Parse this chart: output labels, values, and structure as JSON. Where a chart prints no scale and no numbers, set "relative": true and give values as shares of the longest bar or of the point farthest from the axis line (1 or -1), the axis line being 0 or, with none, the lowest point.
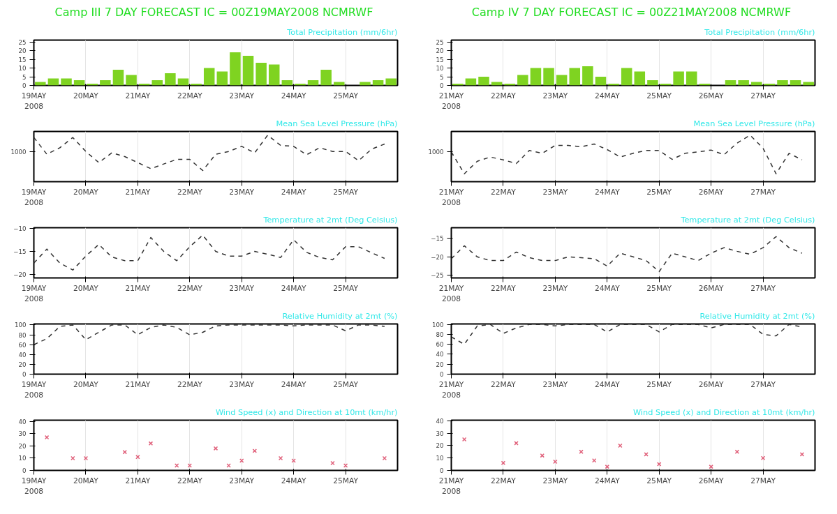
{
  "chart_data": [
    {
      "type": "bar",
      "title": "Camp III 7 DAY FORECAST  IC = 00Z19MAY2008 NCMRWF",
      "subtitle": "Total Precipitation (mm/6hr)",
      "color": "#7fd321",
      "grid": "x",
      "x": [
        "2008-05-19T03:00",
        "2008-05-19T09:00",
        "2008-05-19T15:00",
        "2008-05-19T21:00",
        "2008-05-20T03:00",
        "2008-05-20T09:00",
        "2008-05-20T15:00",
        "2008-05-20T21:00",
        "2008-05-21T03:00",
        "2008-05-21T09:00",
        "2008-05-21T15:00",
        "2008-05-21T21:00",
        "2008-05-22T03:00",
        "2008-05-22T09:00",
        "2008-05-22T15:00",
        "2008-05-22T21:00",
        "2008-05-23T03:00",
        "2008-05-23T09:00",
        "2008-05-23T15:00",
        "2008-05-23T21:00",
        "2008-05-24T03:00",
        "2008-05-24T09:00",
        "2008-05-24T15:00",
        "2008-05-24T21:00",
        "2008-05-25T03:00",
        "2008-05-25T09:00",
        "2008-05-25T15:00",
        "2008-05-25T21:00"
      ],
      "values": [
        2,
        4,
        4,
        3,
        1,
        3,
        9,
        6,
        1,
        3,
        7,
        4,
        1,
        10,
        8,
        19,
        17,
        13,
        12,
        3,
        1,
        3,
        9,
        2,
        0,
        2,
        3,
        4
      ],
      "xlim": [
        "2008-05-19T00:00",
        "2008-05-26T00:00"
      ],
      "ylim": [
        0,
        26
      ],
      "yticks": [
        0,
        5,
        10,
        15,
        20,
        25
      ],
      "xticks": [
        {
          "value": "2008-05-19",
          "label": "19MAY\n2008"
        },
        {
          "value": "2008-05-20",
          "label": "20MAY"
        },
        {
          "value": "2008-05-21",
          "label": "21MAY"
        },
        {
          "value": "2008-05-22",
          "label": "22MAY"
        },
        {
          "value": "2008-05-23",
          "label": "23MAY"
        },
        {
          "value": "2008-05-24",
          "label": "24MAY"
        },
        {
          "value": "2008-05-25",
          "label": "25MAY"
        }
      ]
    },
    {
      "type": "bar",
      "title": "Camp IV 7 DAY FORECAST  IC = 00Z21MAY2008 NCMRWF",
      "subtitle": "Total Precipitation (mm/6hr)",
      "color": "#7fd321",
      "grid": "x",
      "x": [
        "2008-05-21T03:00",
        "2008-05-21T09:00",
        "2008-05-21T15:00",
        "2008-05-21T21:00",
        "2008-05-22T03:00",
        "2008-05-22T09:00",
        "2008-05-22T15:00",
        "2008-05-22T21:00",
        "2008-05-23T03:00",
        "2008-05-23T09:00",
        "2008-05-23T15:00",
        "2008-05-23T21:00",
        "2008-05-24T03:00",
        "2008-05-24T09:00",
        "2008-05-24T15:00",
        "2008-05-24T21:00",
        "2008-05-25T03:00",
        "2008-05-25T09:00",
        "2008-05-25T15:00",
        "2008-05-25T21:00",
        "2008-05-26T03:00",
        "2008-05-26T09:00",
        "2008-05-26T15:00",
        "2008-05-26T21:00",
        "2008-05-27T03:00",
        "2008-05-27T09:00",
        "2008-05-27T15:00",
        "2008-05-27T21:00"
      ],
      "values": [
        1,
        4,
        5,
        2,
        1,
        6,
        10,
        10,
        6,
        10,
        11,
        5,
        1,
        10,
        8,
        3,
        1,
        8,
        8,
        1,
        0,
        3,
        3,
        2,
        1,
        3,
        3,
        2
      ],
      "xlim": [
        "2008-05-21T00:00",
        "2008-05-28T00:00"
      ],
      "ylim": [
        0,
        26
      ],
      "yticks": [
        0,
        5,
        10,
        15,
        20,
        25
      ],
      "xticks": [
        {
          "value": "2008-05-21",
          "label": "21MAY\n2008"
        },
        {
          "value": "2008-05-22",
          "label": "22MAY"
        },
        {
          "value": "2008-05-23",
          "label": "23MAY"
        },
        {
          "value": "2008-05-24",
          "label": "24MAY"
        },
        {
          "value": "2008-05-25",
          "label": "25MAY"
        },
        {
          "value": "2008-05-26",
          "label": "26MAY"
        },
        {
          "value": "2008-05-27",
          "label": "27MAY"
        }
      ]
    },
    {
      "type": "line",
      "title": "Mean Sea Level Pressure (hPa)",
      "relative": true,
      "color": "#333333",
      "line_style": "dashed",
      "grid": "x",
      "x": [
        "2008-05-19T00:00",
        "2008-05-19T06:00",
        "2008-05-19T12:00",
        "2008-05-19T18:00",
        "2008-05-20T00:00",
        "2008-05-20T06:00",
        "2008-05-20T12:00",
        "2008-05-20T18:00",
        "2008-05-21T00:00",
        "2008-05-21T06:00",
        "2008-05-21T12:00",
        "2008-05-21T18:00",
        "2008-05-22T00:00",
        "2008-05-22T06:00",
        "2008-05-22T12:00",
        "2008-05-22T18:00",
        "2008-05-23T00:00",
        "2008-05-23T06:00",
        "2008-05-23T12:00",
        "2008-05-23T18:00",
        "2008-05-24T00:00",
        "2008-05-24T06:00",
        "2008-05-24T12:00",
        "2008-05-24T18:00",
        "2008-05-25T00:00",
        "2008-05-25T06:00",
        "2008-05-25T12:00",
        "2008-05-25T18:00"
      ],
      "values": [
        0.95,
        0.59,
        0.73,
        0.95,
        0.65,
        0.41,
        0.62,
        0.54,
        0.41,
        0.28,
        0.38,
        0.48,
        0.48,
        0.24,
        0.59,
        0.65,
        0.76,
        0.62,
        1.0,
        0.78,
        0.76,
        0.58,
        0.73,
        0.65,
        0.65,
        0.45,
        0.7,
        0.81
      ],
      "annotations": [
        "1000"
      ],
      "xlim": [
        "2008-05-19T00:00",
        "2008-05-26T00:00"
      ],
      "xticks": [
        {
          "value": "2008-05-19",
          "label": "19MAY\n2008"
        },
        {
          "value": "2008-05-20",
          "label": "20MAY"
        },
        {
          "value": "2008-05-21",
          "label": "21MAY"
        },
        {
          "value": "2008-05-22",
          "label": "22MAY"
        },
        {
          "value": "2008-05-23",
          "label": "23MAY"
        },
        {
          "value": "2008-05-24",
          "label": "24MAY"
        },
        {
          "value": "2008-05-25",
          "label": "25MAY"
        }
      ]
    },
    {
      "type": "line",
      "title": "Mean Sea Level Pressure (hPa)",
      "relative": true,
      "color": "#333333",
      "line_style": "dashed",
      "grid": "x",
      "x": [
        "2008-05-21T00:00",
        "2008-05-21T06:00",
        "2008-05-21T12:00",
        "2008-05-21T18:00",
        "2008-05-22T00:00",
        "2008-05-22T06:00",
        "2008-05-22T12:00",
        "2008-05-22T18:00",
        "2008-05-23T00:00",
        "2008-05-23T06:00",
        "2008-05-23T12:00",
        "2008-05-23T18:00",
        "2008-05-24T00:00",
        "2008-05-24T06:00",
        "2008-05-24T12:00",
        "2008-05-24T18:00",
        "2008-05-25T00:00",
        "2008-05-25T06:00",
        "2008-05-25T12:00",
        "2008-05-25T18:00",
        "2008-05-26T00:00",
        "2008-05-26T06:00",
        "2008-05-26T12:00",
        "2008-05-26T18:00",
        "2008-05-27T00:00",
        "2008-05-27T06:00",
        "2008-05-27T12:00",
        "2008-05-27T18:00"
      ],
      "values": [
        0.64,
        0.17,
        0.44,
        0.53,
        0.47,
        0.39,
        0.67,
        0.61,
        0.78,
        0.78,
        0.75,
        0.81,
        0.69,
        0.53,
        0.61,
        0.67,
        0.67,
        0.48,
        0.61,
        0.64,
        0.68,
        0.58,
        0.83,
        1.0,
        0.72,
        0.17,
        0.61,
        0.47
      ],
      "annotations": [
        "1000"
      ],
      "xlim": [
        "2008-05-21T00:00",
        "2008-05-28T00:00"
      ],
      "xticks": [
        {
          "value": "2008-05-21",
          "label": "21MAY\n2008"
        },
        {
          "value": "2008-05-22",
          "label": "22MAY"
        },
        {
          "value": "2008-05-23",
          "label": "23MAY"
        },
        {
          "value": "2008-05-24",
          "label": "24MAY"
        },
        {
          "value": "2008-05-25",
          "label": "25MAY"
        },
        {
          "value": "2008-05-26",
          "label": "26MAY"
        },
        {
          "value": "2008-05-27",
          "label": "27MAY"
        }
      ]
    },
    {
      "type": "line",
      "title": "Temperature at 2mt (Deg Celsius)",
      "color": "#333333",
      "line_style": "dashed",
      "grid": "x",
      "x": [
        "2008-05-19T00:00",
        "2008-05-19T06:00",
        "2008-05-19T12:00",
        "2008-05-19T18:00",
        "2008-05-20T00:00",
        "2008-05-20T06:00",
        "2008-05-20T12:00",
        "2008-05-20T18:00",
        "2008-05-21T00:00",
        "2008-05-21T06:00",
        "2008-05-21T12:00",
        "2008-05-21T18:00",
        "2008-05-22T00:00",
        "2008-05-22T06:00",
        "2008-05-22T12:00",
        "2008-05-22T18:00",
        "2008-05-23T00:00",
        "2008-05-23T06:00",
        "2008-05-23T12:00",
        "2008-05-23T18:00",
        "2008-05-24T00:00",
        "2008-05-24T06:00",
        "2008-05-24T12:00",
        "2008-05-24T18:00",
        "2008-05-25T00:00",
        "2008-05-25T06:00",
        "2008-05-25T12:00",
        "2008-05-25T18:00"
      ],
      "values": [
        -17.5,
        -14.5,
        -17.5,
        -19,
        -16,
        -13.5,
        -16.2,
        -17,
        -17,
        -12,
        -15,
        -17,
        -14,
        -11.5,
        -15,
        -16,
        -16,
        -15,
        -15.6,
        -16.3,
        -12.5,
        -15.2,
        -16.3,
        -16.8,
        -14,
        -14,
        -15.3,
        -16.5
      ],
      "xlim": [
        "2008-05-19T00:00",
        "2008-05-26T00:00"
      ],
      "ylim": [
        -20.7,
        -9.9
      ],
      "yticks": [
        -20,
        -15,
        -10
      ],
      "xticks": [
        {
          "value": "2008-05-19",
          "label": "19MAY\n2008"
        },
        {
          "value": "2008-05-20",
          "label": "20MAY"
        },
        {
          "value": "2008-05-21",
          "label": "21MAY"
        },
        {
          "value": "2008-05-22",
          "label": "22MAY"
        },
        {
          "value": "2008-05-23",
          "label": "23MAY"
        },
        {
          "value": "2008-05-24",
          "label": "24MAY"
        },
        {
          "value": "2008-05-25",
          "label": "25MAY"
        }
      ]
    },
    {
      "type": "line",
      "title": "Temperature at 2mt (Deg Celsius)",
      "color": "#333333",
      "line_style": "dashed",
      "grid": "x",
      "x": [
        "2008-05-21T00:00",
        "2008-05-21T06:00",
        "2008-05-21T12:00",
        "2008-05-21T18:00",
        "2008-05-22T00:00",
        "2008-05-22T06:00",
        "2008-05-22T12:00",
        "2008-05-22T18:00",
        "2008-05-23T00:00",
        "2008-05-23T06:00",
        "2008-05-23T12:00",
        "2008-05-23T18:00",
        "2008-05-24T00:00",
        "2008-05-24T06:00",
        "2008-05-24T12:00",
        "2008-05-24T18:00",
        "2008-05-25T00:00",
        "2008-05-25T06:00",
        "2008-05-25T12:00",
        "2008-05-25T18:00",
        "2008-05-26T00:00",
        "2008-05-26T06:00",
        "2008-05-26T12:00",
        "2008-05-26T18:00",
        "2008-05-27T00:00",
        "2008-05-27T06:00",
        "2008-05-27T12:00",
        "2008-05-27T18:00"
      ],
      "values": [
        -20.5,
        -17,
        -20,
        -21,
        -21,
        -18.7,
        -20.2,
        -21,
        -21,
        -20,
        -20.2,
        -20.5,
        -22.5,
        -19,
        -20,
        -21,
        -24,
        -19,
        -20,
        -21,
        -19,
        -17.5,
        -18.5,
        -19.3,
        -17.5,
        -14.5,
        -17.5,
        -19
      ],
      "xlim": [
        "2008-05-21T00:00",
        "2008-05-28T00:00"
      ],
      "ylim": [
        -25.7,
        -12.1
      ],
      "yticks": [
        -25,
        -20,
        -15
      ],
      "xticks": [
        {
          "value": "2008-05-21",
          "label": "21MAY\n2008"
        },
        {
          "value": "2008-05-22",
          "label": "22MAY"
        },
        {
          "value": "2008-05-23",
          "label": "23MAY"
        },
        {
          "value": "2008-05-24",
          "label": "24MAY"
        },
        {
          "value": "2008-05-25",
          "label": "25MAY"
        },
        {
          "value": "2008-05-26",
          "label": "26MAY"
        },
        {
          "value": "2008-05-27",
          "label": "27MAY"
        }
      ]
    },
    {
      "type": "line",
      "title": "Relative Humidity at 2mt (%)",
      "color": "#333333",
      "line_style": "dashed",
      "grid": "x",
      "x": [
        "2008-05-19T00:00",
        "2008-05-19T06:00",
        "2008-05-19T12:00",
        "2008-05-19T18:00",
        "2008-05-20T00:00",
        "2008-05-20T06:00",
        "2008-05-20T12:00",
        "2008-05-20T18:00",
        "2008-05-21T00:00",
        "2008-05-21T06:00",
        "2008-05-21T12:00",
        "2008-05-21T18:00",
        "2008-05-22T00:00",
        "2008-05-22T06:00",
        "2008-05-22T12:00",
        "2008-05-22T18:00",
        "2008-05-23T00:00",
        "2008-05-23T06:00",
        "2008-05-23T12:00",
        "2008-05-23T18:00",
        "2008-05-24T00:00",
        "2008-05-24T06:00",
        "2008-05-24T12:00",
        "2008-05-24T18:00",
        "2008-05-25T00:00",
        "2008-05-25T06:00",
        "2008-05-25T12:00",
        "2008-05-25T18:00"
      ],
      "values": [
        60,
        72,
        97,
        100,
        70,
        85,
        100,
        100,
        80,
        95,
        100,
        95,
        80,
        85,
        98,
        100,
        100,
        100,
        100,
        100,
        98,
        100,
        100,
        100,
        88,
        100,
        100,
        97
      ],
      "xlim": [
        "2008-05-19T00:00",
        "2008-05-26T00:00"
      ],
      "ylim": [
        0,
        102
      ],
      "yticks": [
        0,
        20,
        40,
        60,
        80,
        100
      ],
      "xticks": [
        {
          "value": "2008-05-19",
          "label": "19MAY\n2008"
        },
        {
          "value": "2008-05-20",
          "label": "20MAY"
        },
        {
          "value": "2008-05-21",
          "label": "21MAY"
        },
        {
          "value": "2008-05-22",
          "label": "22MAY"
        },
        {
          "value": "2008-05-23",
          "label": "23MAY"
        },
        {
          "value": "2008-05-24",
          "label": "24MAY"
        },
        {
          "value": "2008-05-25",
          "label": "25MAY"
        }
      ]
    },
    {
      "type": "line",
      "title": "Relative Humidity at 2mt (%)",
      "color": "#333333",
      "line_style": "dashed",
      "grid": "x",
      "x": [
        "2008-05-21T00:00",
        "2008-05-21T06:00",
        "2008-05-21T12:00",
        "2008-05-21T18:00",
        "2008-05-22T00:00",
        "2008-05-22T06:00",
        "2008-05-22T12:00",
        "2008-05-22T18:00",
        "2008-05-23T00:00",
        "2008-05-23T06:00",
        "2008-05-23T12:00",
        "2008-05-23T18:00",
        "2008-05-24T00:00",
        "2008-05-24T06:00",
        "2008-05-24T12:00",
        "2008-05-24T18:00",
        "2008-05-25T00:00",
        "2008-05-25T06:00",
        "2008-05-25T12:00",
        "2008-05-25T18:00",
        "2008-05-26T00:00",
        "2008-05-26T06:00",
        "2008-05-26T12:00",
        "2008-05-26T18:00",
        "2008-05-27T00:00",
        "2008-05-27T06:00",
        "2008-05-27T12:00",
        "2008-05-27T18:00"
      ],
      "values": [
        75,
        60,
        97,
        100,
        82,
        93,
        100,
        100,
        97,
        100,
        100,
        100,
        85,
        100,
        100,
        100,
        85,
        100,
        100,
        100,
        93,
        100,
        100,
        100,
        80,
        77,
        100,
        95
      ],
      "xlim": [
        "2008-05-21T00:00",
        "2008-05-28T00:00"
      ],
      "ylim": [
        0,
        101
      ],
      "yticks": [
        0,
        20,
        40,
        60,
        80,
        100
      ],
      "xticks": [
        {
          "value": "2008-05-21",
          "label": "21MAY\n2008"
        },
        {
          "value": "2008-05-22",
          "label": "22MAY"
        },
        {
          "value": "2008-05-23",
          "label": "23MAY"
        },
        {
          "value": "2008-05-24",
          "label": "24MAY"
        },
        {
          "value": "2008-05-25",
          "label": "25MAY"
        },
        {
          "value": "2008-05-26",
          "label": "26MAY"
        },
        {
          "value": "2008-05-27",
          "label": "27MAY"
        }
      ]
    },
    {
      "type": "scatter",
      "title": "Wind Speed (x) and Direction at 10mt (km/hr)",
      "color": "#e0607a",
      "marker": "cross",
      "grid": "x",
      "x": [
        "2008-05-19T06:00",
        "2008-05-19T18:00",
        "2008-05-20T00:00",
        "2008-05-20T18:00",
        "2008-05-21T00:00",
        "2008-05-21T06:00",
        "2008-05-21T18:00",
        "2008-05-22T00:00",
        "2008-05-22T12:00",
        "2008-05-22T18:00",
        "2008-05-23T00:00",
        "2008-05-23T06:00",
        "2008-05-23T18:00",
        "2008-05-24T00:00",
        "2008-05-24T18:00",
        "2008-05-25T00:00",
        "2008-05-25T18:00"
      ],
      "values": [
        27,
        10,
        10,
        15,
        11,
        22,
        4,
        4,
        18,
        4,
        8,
        16,
        10,
        8,
        6,
        4,
        10
      ],
      "xlim": [
        "2008-05-19T00:00",
        "2008-05-26T00:00"
      ],
      "ylim": [
        0,
        41
      ],
      "yticks": [
        0,
        10,
        20,
        30,
        40
      ],
      "xticks": [
        {
          "value": "2008-05-19",
          "label": "19MAY\n2008"
        },
        {
          "value": "2008-05-20",
          "label": "20MAY"
        },
        {
          "value": "2008-05-21",
          "label": "21MAY"
        },
        {
          "value": "2008-05-22",
          "label": "22MAY"
        },
        {
          "value": "2008-05-23",
          "label": "23MAY"
        },
        {
          "value": "2008-05-24",
          "label": "24MAY"
        },
        {
          "value": "2008-05-25",
          "label": "25MAY"
        }
      ]
    },
    {
      "type": "scatter",
      "title": "Wind Speed (x) and Direction at 10mt (km/hr)",
      "color": "#e0607a",
      "marker": "cross",
      "grid": "x",
      "x": [
        "2008-05-21T06:00",
        "2008-05-22T00:00",
        "2008-05-22T06:00",
        "2008-05-22T18:00",
        "2008-05-23T00:00",
        "2008-05-23T12:00",
        "2008-05-23T18:00",
        "2008-05-24T00:00",
        "2008-05-24T06:00",
        "2008-05-24T18:00",
        "2008-05-25T00:00",
        "2008-05-26T00:00",
        "2008-05-26T12:00",
        "2008-05-27T00:00",
        "2008-05-27T18:00"
      ],
      "values": [
        25,
        6,
        22,
        12,
        7,
        15,
        8,
        3,
        20,
        13,
        5,
        3,
        15,
        10,
        13
      ],
      "xlim": [
        "2008-05-21T00:00",
        "2008-05-28T00:00"
      ],
      "ylim": [
        0,
        40.5
      ],
      "yticks": [
        0,
        10,
        20,
        30,
        40
      ],
      "xticks": [
        {
          "value": "2008-05-21",
          "label": "21MAY\n2008"
        },
        {
          "value": "2008-05-22",
          "label": "22MAY"
        },
        {
          "value": "2008-05-23",
          "label": "23MAY"
        },
        {
          "value": "2008-05-24",
          "label": "24MAY"
        },
        {
          "value": "2008-05-25",
          "label": "25MAY"
        },
        {
          "value": "2008-05-26",
          "label": "26MAY"
        },
        {
          "value": "2008-05-27",
          "label": "27MAY"
        }
      ]
    }
  ]
}
